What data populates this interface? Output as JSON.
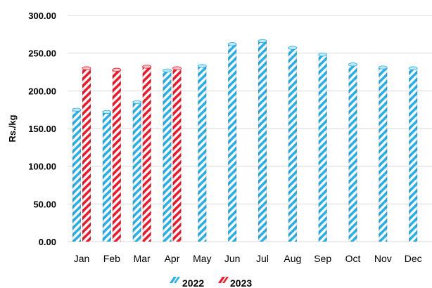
{
  "chart_data": {
    "type": "bar",
    "categories": [
      "Jan",
      "Feb",
      "Mar",
      "Apr",
      "May",
      "Jun",
      "Jul",
      "Aug",
      "Sep",
      "Oct",
      "Nov",
      "Dec"
    ],
    "series": [
      {
        "name": "2022",
        "values": [
          175,
          172,
          185,
          227,
          233,
          262,
          266,
          257,
          248,
          235,
          231,
          230
        ],
        "color": "#2bb0e6"
      },
      {
        "name": "2023",
        "values": [
          230,
          228,
          232,
          230,
          null,
          null,
          null,
          null,
          null,
          null,
          null,
          null
        ],
        "color": "#e81c2e"
      }
    ],
    "title": "",
    "xlabel": "",
    "ylabel": "Rs./kg",
    "ylim": [
      0,
      300
    ],
    "yticks": [
      "0.00",
      "50.00",
      "100.00",
      "150.00",
      "200.00",
      "250.00",
      "300.00"
    ],
    "grid": true,
    "legend_position": "bottom-center"
  }
}
